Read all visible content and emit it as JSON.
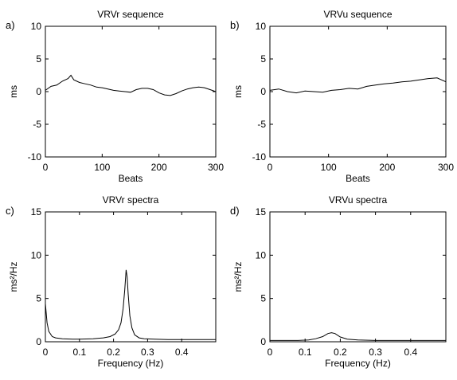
{
  "chart_data": [
    {
      "panel_label": "a)",
      "type": "line",
      "title": "VRVr sequence",
      "xlabel": "Beats",
      "ylabel": "ms",
      "xlim": [
        0,
        300
      ],
      "ylim": [
        -10,
        10
      ],
      "xticks": [
        "0",
        "100",
        "200",
        "300"
      ],
      "yticks": [
        "-10",
        "-5",
        "0",
        "5",
        "10"
      ],
      "series": [
        {
          "x": [
            0,
            10,
            20,
            30,
            40,
            45,
            50,
            60,
            70,
            80,
            90,
            100,
            110,
            120,
            130,
            140,
            150,
            160,
            170,
            180,
            190,
            200,
            210,
            220,
            230,
            240,
            250,
            260,
            270,
            280,
            290,
            300
          ],
          "y": [
            0.2,
            0.8,
            1.0,
            1.6,
            2.0,
            2.5,
            1.8,
            1.4,
            1.2,
            1.0,
            0.7,
            0.6,
            0.4,
            0.2,
            0.1,
            0.0,
            -0.1,
            0.3,
            0.5,
            0.5,
            0.3,
            -0.2,
            -0.5,
            -0.6,
            -0.3,
            0.1,
            0.4,
            0.6,
            0.7,
            0.6,
            0.3,
            0.0
          ]
        }
      ]
    },
    {
      "panel_label": "b)",
      "type": "line",
      "title": "VRVu sequence",
      "xlabel": "Beats",
      "ylabel": "ms",
      "xlim": [
        0,
        300
      ],
      "ylim": [
        -10,
        10
      ],
      "xticks": [
        "0",
        "100",
        "200",
        "300"
      ],
      "yticks": [
        "-10",
        "-5",
        "0",
        "5",
        "10"
      ],
      "series": [
        {
          "x": [
            0,
            15,
            30,
            45,
            60,
            75,
            90,
            105,
            120,
            135,
            150,
            165,
            180,
            195,
            210,
            225,
            240,
            255,
            270,
            285,
            300
          ],
          "y": [
            0.2,
            0.4,
            0.0,
            -0.2,
            0.1,
            0.0,
            -0.1,
            0.2,
            0.3,
            0.5,
            0.4,
            0.8,
            1.0,
            1.2,
            1.3,
            1.5,
            1.6,
            1.8,
            2.0,
            2.1,
            1.5
          ]
        }
      ]
    },
    {
      "panel_label": "c)",
      "type": "line",
      "title": "VRVr spectra",
      "xlabel": "Frequency (Hz)",
      "ylabel": "ms²/Hz",
      "xlim": [
        0,
        0.5
      ],
      "ylim": [
        0,
        15
      ],
      "xticks": [
        "0",
        "0.1",
        "0.2",
        "0.3",
        "0.4"
      ],
      "yticks": [
        "0",
        "5",
        "10",
        "15"
      ],
      "series": [
        {
          "x": [
            0.0,
            0.005,
            0.01,
            0.02,
            0.03,
            0.05,
            0.08,
            0.1,
            0.14,
            0.17,
            0.19,
            0.205,
            0.215,
            0.222,
            0.228,
            0.233,
            0.237,
            0.24,
            0.243,
            0.248,
            0.254,
            0.262,
            0.275,
            0.29,
            0.32,
            0.36,
            0.4,
            0.45,
            0.5
          ],
          "y": [
            4.4,
            2.2,
            1.2,
            0.6,
            0.45,
            0.35,
            0.3,
            0.3,
            0.35,
            0.45,
            0.6,
            0.9,
            1.4,
            2.2,
            3.8,
            6.0,
            8.3,
            7.5,
            5.5,
            3.0,
            1.6,
            0.8,
            0.45,
            0.35,
            0.3,
            0.25,
            0.25,
            0.25,
            0.25
          ]
        }
      ]
    },
    {
      "panel_label": "d)",
      "type": "line",
      "title": "VRVu spectra",
      "xlabel": "Frequency (Hz)",
      "ylabel": "ms²/Hz",
      "xlim": [
        0,
        0.5
      ],
      "ylim": [
        0,
        15
      ],
      "xticks": [
        "0",
        "0.1",
        "0.2",
        "0.3",
        "0.4"
      ],
      "yticks": [
        "0",
        "5",
        "10",
        "15"
      ],
      "series": [
        {
          "x": [
            0.0,
            0.02,
            0.05,
            0.08,
            0.11,
            0.13,
            0.15,
            0.165,
            0.175,
            0.185,
            0.2,
            0.22,
            0.25,
            0.3,
            0.35,
            0.4,
            0.45,
            0.5
          ],
          "y": [
            0.15,
            0.15,
            0.15,
            0.15,
            0.2,
            0.35,
            0.6,
            0.95,
            1.05,
            0.95,
            0.55,
            0.3,
            0.2,
            0.15,
            0.15,
            0.15,
            0.15,
            0.15
          ]
        }
      ]
    }
  ]
}
